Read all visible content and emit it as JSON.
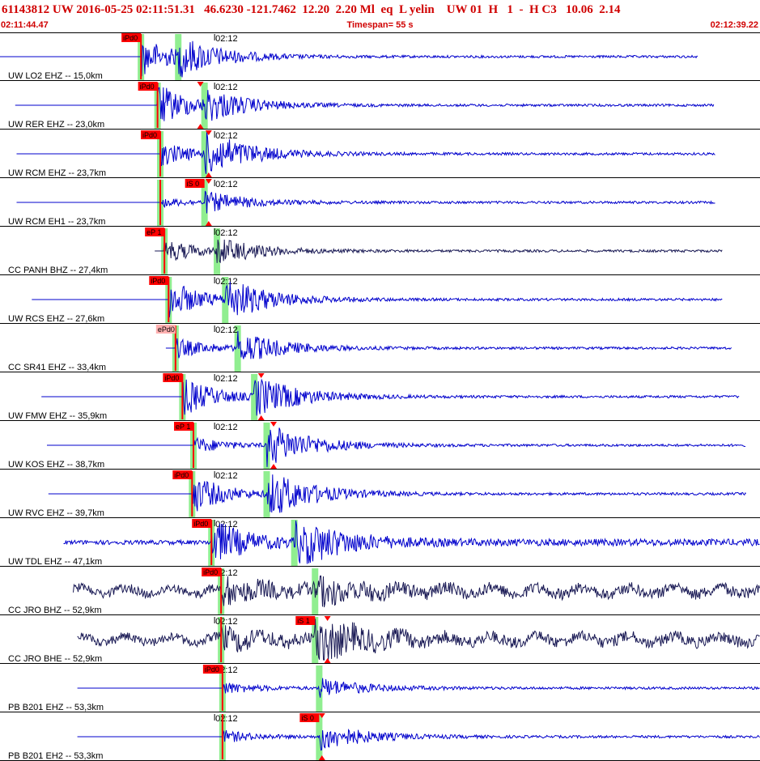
{
  "header": {
    "title": "61143812 UW 2016-05-25 02:11:51.31   46.6230 -121.7462  12.20  2.20 Ml  eq  L yelin    UW 01  H   1  -  H C3   10.06  2.14",
    "start_time": "02:11:44.47",
    "timespan": "Timespan=  55 s",
    "end_time": "02:12:39.22"
  },
  "colors": {
    "header_text": "#d00000",
    "trace_blue": "#0000cc",
    "trace_navy": "#1a1a55",
    "pick_bar": "#ff0000",
    "pick_window": "#90ee90"
  },
  "time_axis": {
    "start_s": 0,
    "end_s": 55,
    "minute_mark_label": "02:12",
    "minute_mark_s": 15.53
  },
  "traces": [
    {
      "label": "UW LO2 EHZ -- 15,0km",
      "color": "blue",
      "pick_label": "iPd0",
      "p_s": 10.2,
      "s_s": 12.9,
      "p_amp": 1.0,
      "s_amp": 0.8,
      "start_s": 0.0,
      "end_s": 50.5,
      "noise": 0.0,
      "marker_s": null
    },
    {
      "label": "UW RER EHZ -- 23,0km",
      "color": "blue",
      "pick_label": "iPd0",
      "p_s": 11.4,
      "s_s": 14.8,
      "p_amp": 1.1,
      "s_amp": 0.7,
      "start_s": 1.1,
      "end_s": 51.7,
      "noise": 0.0,
      "marker_s": 14.5
    },
    {
      "label": "UW RCM EHZ -- 23,7km",
      "color": "blue",
      "pick_label": "iPd0",
      "p_s": 11.6,
      "s_s": 14.8,
      "p_amp": 0.6,
      "s_amp": 1.1,
      "start_s": 1.2,
      "end_s": 51.8,
      "noise": 0.0,
      "marker_s": 15.1
    },
    {
      "label": "UW RCM EH1 -- 23,7km",
      "color": "blue",
      "pick_label": "iS 0",
      "p_s": 11.6,
      "s_s": 14.8,
      "p_amp": 0.2,
      "s_amp": 0.5,
      "start_s": 1.2,
      "end_s": 51.8,
      "noise": 0.0,
      "marker_s": 15.1
    },
    {
      "label": "CC PANH BHZ -- 27,4km",
      "color": "navy",
      "pick_label": "eP 1",
      "p_s": 11.9,
      "s_s": 15.7,
      "p_amp": 0.6,
      "s_amp": 0.6,
      "start_s": 11.2,
      "end_s": 52.3,
      "noise": 0.0,
      "marker_s": null
    },
    {
      "label": "UW RCS EHZ -- 27,6km",
      "color": "blue",
      "pick_label": "iPd0",
      "p_s": 12.2,
      "s_s": 16.3,
      "p_amp": 1.0,
      "s_amp": 1.0,
      "start_s": 2.3,
      "end_s": 52.3,
      "noise": 0.0,
      "marker_s": null
    },
    {
      "label": "CC SR41 EHZ -- 33,4km",
      "color": "blue",
      "pick_label": "ePd0",
      "p_s": 12.7,
      "s_s": 17.2,
      "p_amp": 0.5,
      "s_amp": 0.8,
      "start_s": 12.0,
      "end_s": 53.0,
      "noise": 0.0,
      "marker_s": null
    },
    {
      "label": "UW FMW EHZ -- 35,9km",
      "color": "blue",
      "pick_label": "iPd0",
      "p_s": 13.2,
      "s_s": 18.4,
      "p_amp": 1.0,
      "s_amp": 1.0,
      "start_s": 3.0,
      "end_s": 53.5,
      "noise": 0.0,
      "marker_s": 18.9
    },
    {
      "label": "UW KOS EHZ -- 38,7km",
      "color": "blue",
      "pick_label": "eP 1",
      "p_s": 14.0,
      "s_s": 19.3,
      "p_amp": 0.4,
      "s_amp": 1.1,
      "start_s": 3.4,
      "end_s": 54.0,
      "noise": 0.0,
      "marker_s": 19.8
    },
    {
      "label": "UW RVC EHZ -- 39,7km",
      "color": "blue",
      "pick_label": "iPd0",
      "p_s": 13.9,
      "s_s": 19.3,
      "p_amp": 1.0,
      "s_amp": 1.2,
      "start_s": 3.5,
      "end_s": 54.0,
      "noise": 0.0,
      "marker_s": null
    },
    {
      "label": "UW TDL EHZ -- 47,1km",
      "color": "blue",
      "pick_label": "iPd0",
      "p_s": 15.3,
      "s_s": 21.3,
      "p_amp": 1.2,
      "s_amp": 1.3,
      "start_s": 4.6,
      "end_s": 55.0,
      "noise": 0.12,
      "marker_s": null
    },
    {
      "label": "CC JRO BHZ -- 52,9km",
      "color": "navy",
      "pick_label": "iPd0",
      "p_s": 16.0,
      "s_s": 22.8,
      "p_amp": 0.7,
      "s_amp": 0.6,
      "start_s": 5.3,
      "end_s": 55.0,
      "noise": 0.25,
      "marker_s": null
    },
    {
      "label": "CC JRO BHE -- 52,9km",
      "color": "navy",
      "pick_label": "iS 1",
      "p_s": 16.0,
      "s_s": 22.8,
      "p_amp": 0.5,
      "s_amp": 1.0,
      "start_s": 5.6,
      "end_s": 55.0,
      "noise": 0.25,
      "marker_s": 23.7
    },
    {
      "label": "PB B201 EHZ -- 53,3km",
      "color": "blue",
      "pick_label": "iPd0",
      "p_s": 16.1,
      "s_s": 23.1,
      "p_amp": 0.3,
      "s_amp": 0.5,
      "start_s": 5.6,
      "end_s": 55.0,
      "noise": 0.0,
      "marker_s": null
    },
    {
      "label": "PB B201 EH2 -- 53,3km",
      "color": "blue",
      "pick_label": "iS 0",
      "p_s": 16.1,
      "s_s": 23.1,
      "p_amp": 0.3,
      "s_amp": 0.7,
      "start_s": 5.6,
      "end_s": 55.0,
      "noise": 0.0,
      "marker_s": 23.3
    }
  ]
}
